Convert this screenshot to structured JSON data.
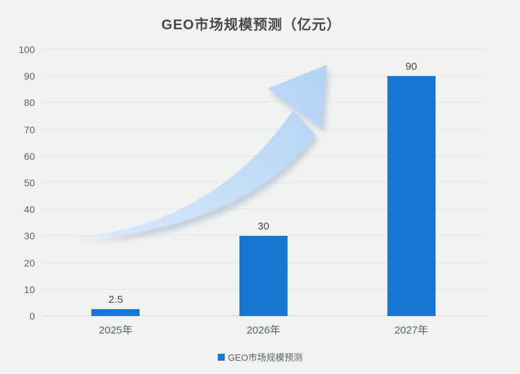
{
  "colors": {
    "background": "#f1f2f2",
    "bar": "#1877d2",
    "gridline": "#e4e5e6",
    "axis_line": "#d8d9da",
    "title_text": "#47494c",
    "tick_text": "#5c5f62",
    "arrow_light": "#dceafb",
    "arrow_dark": "#b2d3f6"
  },
  "legend": {
    "marker_color": "#1877d2",
    "label": "GEO市场规模预测"
  },
  "chart_data": {
    "type": "bar",
    "title": "GEO市场规模预测（亿元）",
    "categories": [
      "2025年",
      "2026年",
      "2027年"
    ],
    "values": [
      2.5,
      30,
      90
    ],
    "value_labels": [
      "2.5",
      "30",
      "90"
    ],
    "series": [
      {
        "name": "GEO市场规模预测",
        "values": [
          2.5,
          30,
          90
        ]
      }
    ],
    "xlabel": "",
    "ylabel": "",
    "ylim": [
      0,
      100
    ],
    "ytick_step": 10,
    "yticks": [
      0,
      10,
      20,
      30,
      40,
      50,
      60,
      70,
      80,
      90,
      100
    ],
    "grid": true,
    "legend_entries": [
      "GEO市场规模预测"
    ],
    "legend_position": "bottom",
    "annotations": [
      "decorative upward growth arrow across plot"
    ]
  }
}
